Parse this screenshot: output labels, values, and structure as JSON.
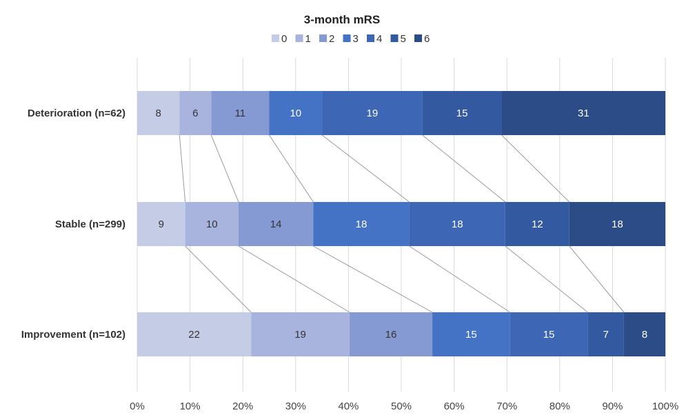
{
  "chart_data": {
    "type": "bar",
    "orientation": "horizontal",
    "stacked": "100%",
    "title": "3-month mRS",
    "legend_position": "top",
    "grid": true,
    "xlim": [
      0,
      100
    ],
    "x_ticks": [
      "0%",
      "10%",
      "20%",
      "30%",
      "40%",
      "50%",
      "60%",
      "70%",
      "80%",
      "90%",
      "100%"
    ],
    "categories": [
      "Deterioration (n=62)",
      "Stable (n=299)",
      "Improvement (n=102)"
    ],
    "series": [
      {
        "name": "0",
        "color": "#c5cde6",
        "label_color": "#333333",
        "values": [
          8,
          9,
          22
        ]
      },
      {
        "name": "1",
        "color": "#a8b4dd",
        "label_color": "#333333",
        "values": [
          6,
          10,
          19
        ]
      },
      {
        "name": "2",
        "color": "#8599d3",
        "label_color": "#333333",
        "values": [
          11,
          14,
          16
        ]
      },
      {
        "name": "3",
        "color": "#4472c4",
        "label_color": "#ffffff",
        "values": [
          10,
          18,
          15
        ]
      },
      {
        "name": "4",
        "color": "#3d66b4",
        "label_color": "#ffffff",
        "values": [
          19,
          18,
          15
        ]
      },
      {
        "name": "5",
        "color": "#335aa0",
        "label_color": "#ffffff",
        "values": [
          15,
          12,
          7
        ]
      },
      {
        "name": "6",
        "color": "#2c4c88",
        "label_color": "#ffffff",
        "values": [
          31,
          18,
          8
        ]
      }
    ],
    "series_lines": true,
    "series_line_color": "#9a9a9a",
    "gridline_color": "#d9d9d9"
  }
}
